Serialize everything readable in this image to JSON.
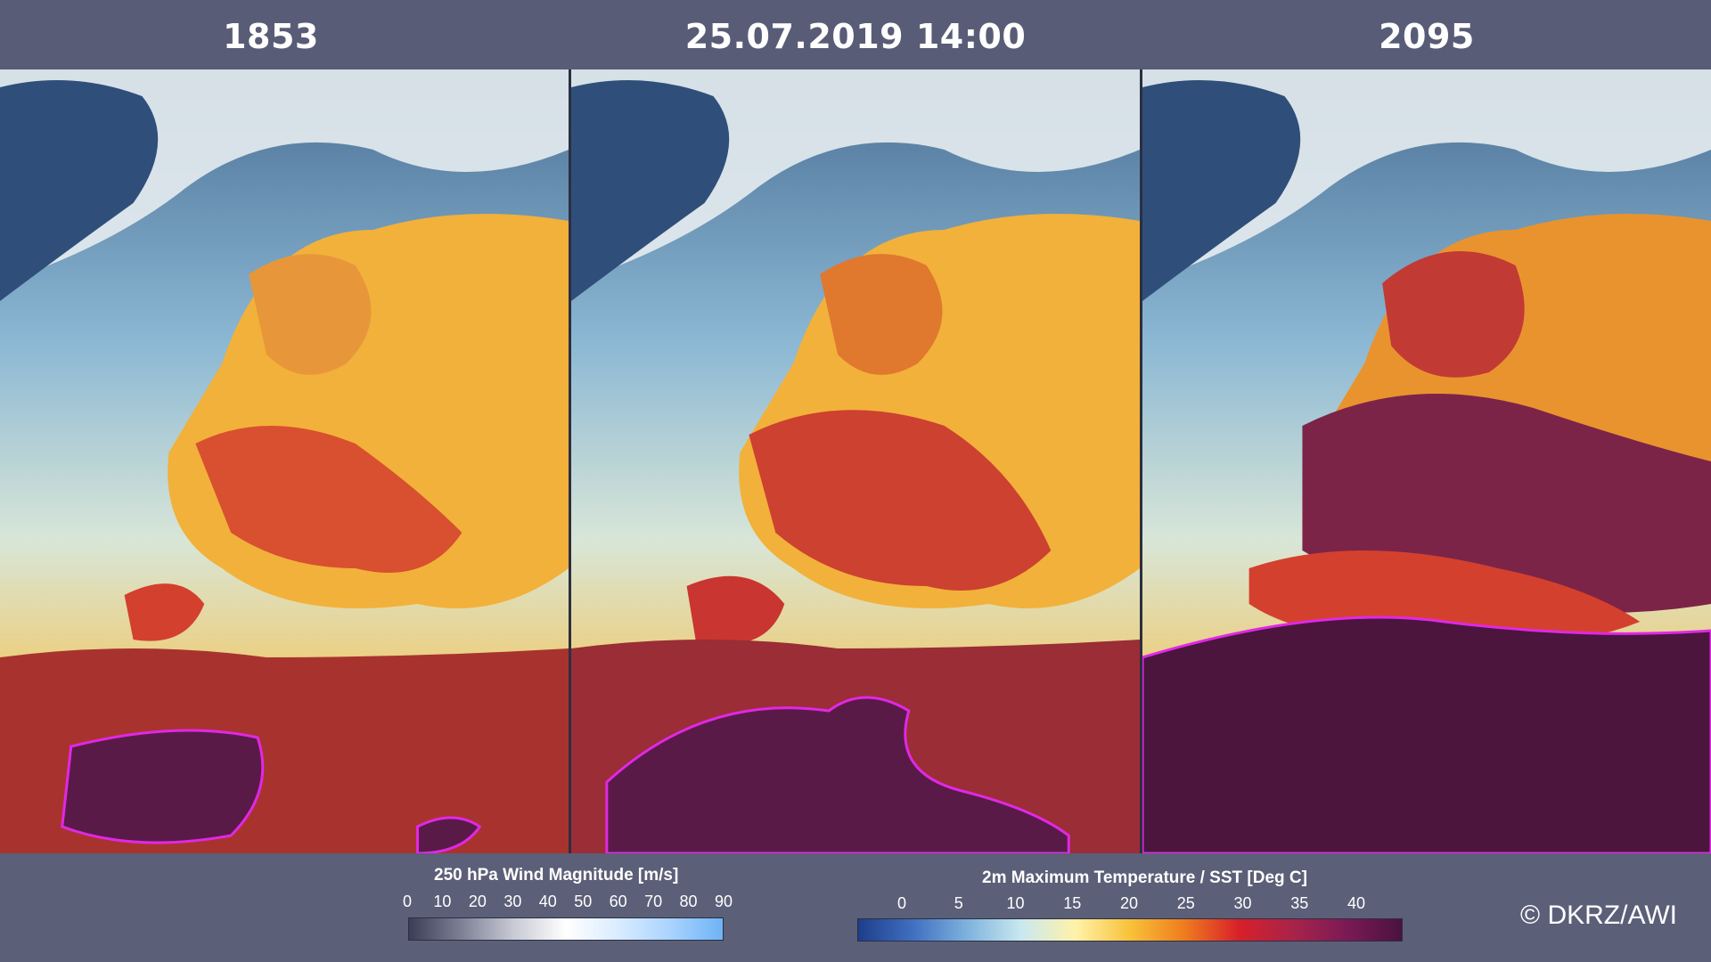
{
  "panels": [
    {
      "title": "1853"
    },
    {
      "title": "25.07.2019 14:00"
    },
    {
      "title": "2095"
    }
  ],
  "wind_legend": {
    "title": "250 hPa Wind Magnitude  [m/s]",
    "ticks": [
      "0",
      "10",
      "20",
      "30",
      "40",
      "50",
      "60",
      "70",
      "80",
      "90"
    ],
    "colors": [
      "#3a3d55",
      "#7d8196",
      "#c8cad4",
      "#ffffff",
      "#d9ecff",
      "#a9d3ff",
      "#6fb3f5"
    ]
  },
  "temp_legend": {
    "title": "2m Maximum Temperature / SST  [Deg C]",
    "ticks": [
      "0",
      "5",
      "10",
      "15",
      "20",
      "25",
      "30",
      "35",
      "40"
    ],
    "colors": [
      "#1e3e8a",
      "#3f6fc0",
      "#7eb2dd",
      "#c9e8f0",
      "#fff2a8",
      "#f8c23a",
      "#ef7c1e",
      "#d8202a",
      "#a8234a",
      "#7a1a55",
      "#4a1240"
    ]
  },
  "copyright": "© DKRZ/AWI",
  "colors": {
    "background": "#5b5f78",
    "ocean": "#6d9cc0",
    "ice": "#dfe6ec",
    "land_warm": "#f2b13a",
    "land_hot": "#d4402e",
    "land_extreme": "#5a1a48",
    "contour_magenta": "#e028e6"
  }
}
